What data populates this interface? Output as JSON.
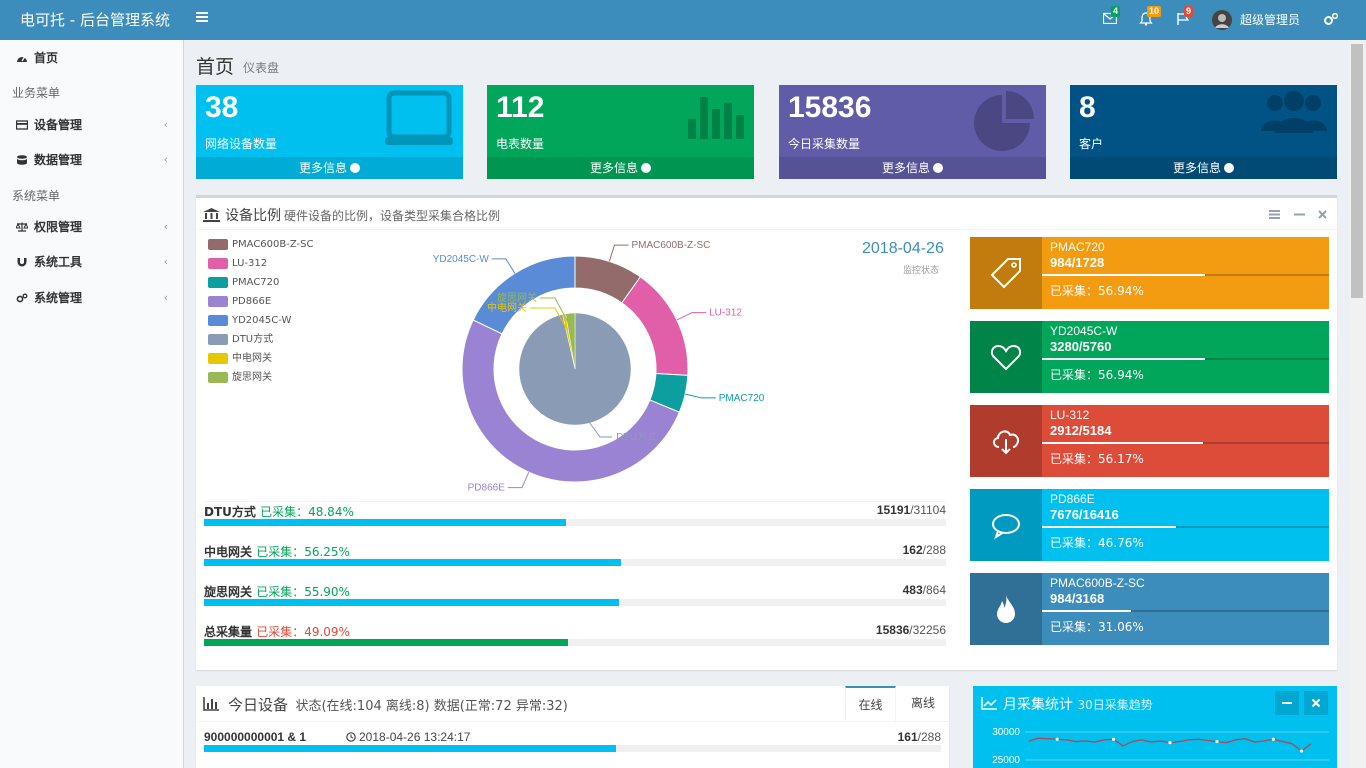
{
  "header": {
    "app_title": "电可托 - 后台管理系统",
    "mail_badge": "4",
    "bell_badge": "10",
    "flag_badge": "9",
    "user_name": "超级管理员",
    "colors": {
      "bar": "#3c8dbc",
      "badge_green": "#00a65a",
      "badge_yellow": "#f39c12",
      "badge_red": "#dd4b39"
    }
  },
  "sidebar": {
    "home": "首页",
    "business_header": "业务菜单",
    "device_mgmt": "设备管理",
    "data_mgmt": "数据管理",
    "system_header": "系统菜单",
    "permission_mgmt": "权限管理",
    "system_tools": "系统工具",
    "system_mgmt": "系统管理"
  },
  "page": {
    "title": "首页",
    "subtitle": "仪表盘"
  },
  "stat_boxes": [
    {
      "value": "38",
      "label": "网络设备数量",
      "more": "更多信息",
      "color": "#00c0ef",
      "icon": "laptop-icon"
    },
    {
      "value": "112",
      "label": "电表数量",
      "more": "更多信息",
      "color": "#00a65a",
      "icon": "bar-chart-icon"
    },
    {
      "value": "15836",
      "label": "今日采集数量",
      "more": "更多信息",
      "color": "#605ca8",
      "icon": "pie-chart-icon"
    },
    {
      "value": "8",
      "label": "客户",
      "more": "更多信息",
      "color": "#005384",
      "icon": "users-icon"
    }
  ],
  "device_box": {
    "title": "设备比例",
    "subtitle": "硬件设备的比例，设备类型采集合格比例",
    "date": "2018-04-26",
    "date_sub": "监控状态"
  },
  "chart_data": {
    "type": "pie",
    "legend_position": "top-left",
    "legend": [
      "PMAC600B-Z-SC",
      "LU-312",
      "PMAC720",
      "PD866E",
      "YD2045C-W",
      "DTU方式",
      "中电网关",
      "旋思网关"
    ],
    "colors": [
      "#946b6b",
      "#e05fa8",
      "#0d9fa0",
      "#9b83d3",
      "#5a8bd6",
      "#8a9bb5",
      "#e5c800",
      "#98b954"
    ],
    "outer_ring": [
      {
        "name": "PMAC600B-Z-SC",
        "value": 3168
      },
      {
        "name": "LU-312",
        "value": 5184
      },
      {
        "name": "PMAC720",
        "value": 1728
      },
      {
        "name": "PD866E",
        "value": 16416
      },
      {
        "name": "YD2045C-W",
        "value": 5760
      }
    ],
    "inner_pie": [
      {
        "name": "DTU方式",
        "value": 31104
      },
      {
        "name": "中电网关",
        "value": 288
      },
      {
        "name": "旋思网关",
        "value": 864
      }
    ]
  },
  "progress": [
    {
      "name": "DTU方式",
      "label": "已采集：48.84%",
      "done": "15191",
      "total": "/31104",
      "fraction": 0.4884,
      "label_color": "#00a65a",
      "bar_color": "#00c0ef"
    },
    {
      "name": "中电网关",
      "label": "已采集：56.25%",
      "done": "162",
      "total": "/288",
      "fraction": 0.5625,
      "label_color": "#00a65a",
      "bar_color": "#00c0ef"
    },
    {
      "name": "旋思网关",
      "label": "已采集：55.90%",
      "done": "483",
      "total": "/864",
      "fraction": 0.559,
      "label_color": "#00a65a",
      "bar_color": "#00c0ef"
    },
    {
      "name": "总采集量",
      "label": "已采集：49.09%",
      "done": "15836",
      "total": "/32256",
      "fraction": 0.4909,
      "label_color": "#dd4b39",
      "bar_color": "#00a65a"
    }
  ],
  "info_boxes": [
    {
      "name": "PMAC720",
      "count": "984/1728",
      "pct": "已采集：56.94%",
      "fraction": 0.5694,
      "color": "#f39c12",
      "icon": "tag-icon"
    },
    {
      "name": "YD2045C-W",
      "count": "3280/5760",
      "pct": "已采集：56.94%",
      "fraction": 0.5694,
      "color": "#00a65a",
      "icon": "heart-icon"
    },
    {
      "name": "LU-312",
      "count": "2912/5184",
      "pct": "已采集：56.17%",
      "fraction": 0.5617,
      "color": "#dd4b39",
      "icon": "cloud-download-icon"
    },
    {
      "name": "PD866E",
      "count": "7676/16416",
      "pct": "已采集：46.76%",
      "fraction": 0.4676,
      "color": "#00c0ef",
      "icon": "comment-icon"
    },
    {
      "name": "PMAC600B-Z-SC",
      "count": "984/3168",
      "pct": "已采集：31.06%",
      "fraction": 0.3106,
      "color": "#3c8dbc",
      "icon": "fire-icon"
    }
  ],
  "today_box": {
    "title": "今日设备",
    "status": "状态(在线:104 离线:8) 数据(正常:72 异常:32)",
    "tab_online": "在线",
    "tab_offline": "离线",
    "row": {
      "id": "900000000001 & 1",
      "time": "2018-04-26 13:24:17",
      "done": "161",
      "total": "/288",
      "fraction": 0.559
    }
  },
  "month_box": {
    "title": "月采集统计",
    "subtitle": "30日采集趋势",
    "y_ticks": [
      "30000",
      "25000"
    ],
    "series": [
      28400,
      28900,
      28800,
      28700,
      28600,
      28300,
      28400,
      28200,
      28600,
      28700,
      27500,
      28300,
      28600,
      28200,
      28400,
      28100,
      28300,
      28600,
      28700,
      28500,
      28300,
      28100,
      28600,
      28800,
      28200,
      28400,
      28700,
      28300,
      27900,
      26600,
      27900
    ]
  }
}
